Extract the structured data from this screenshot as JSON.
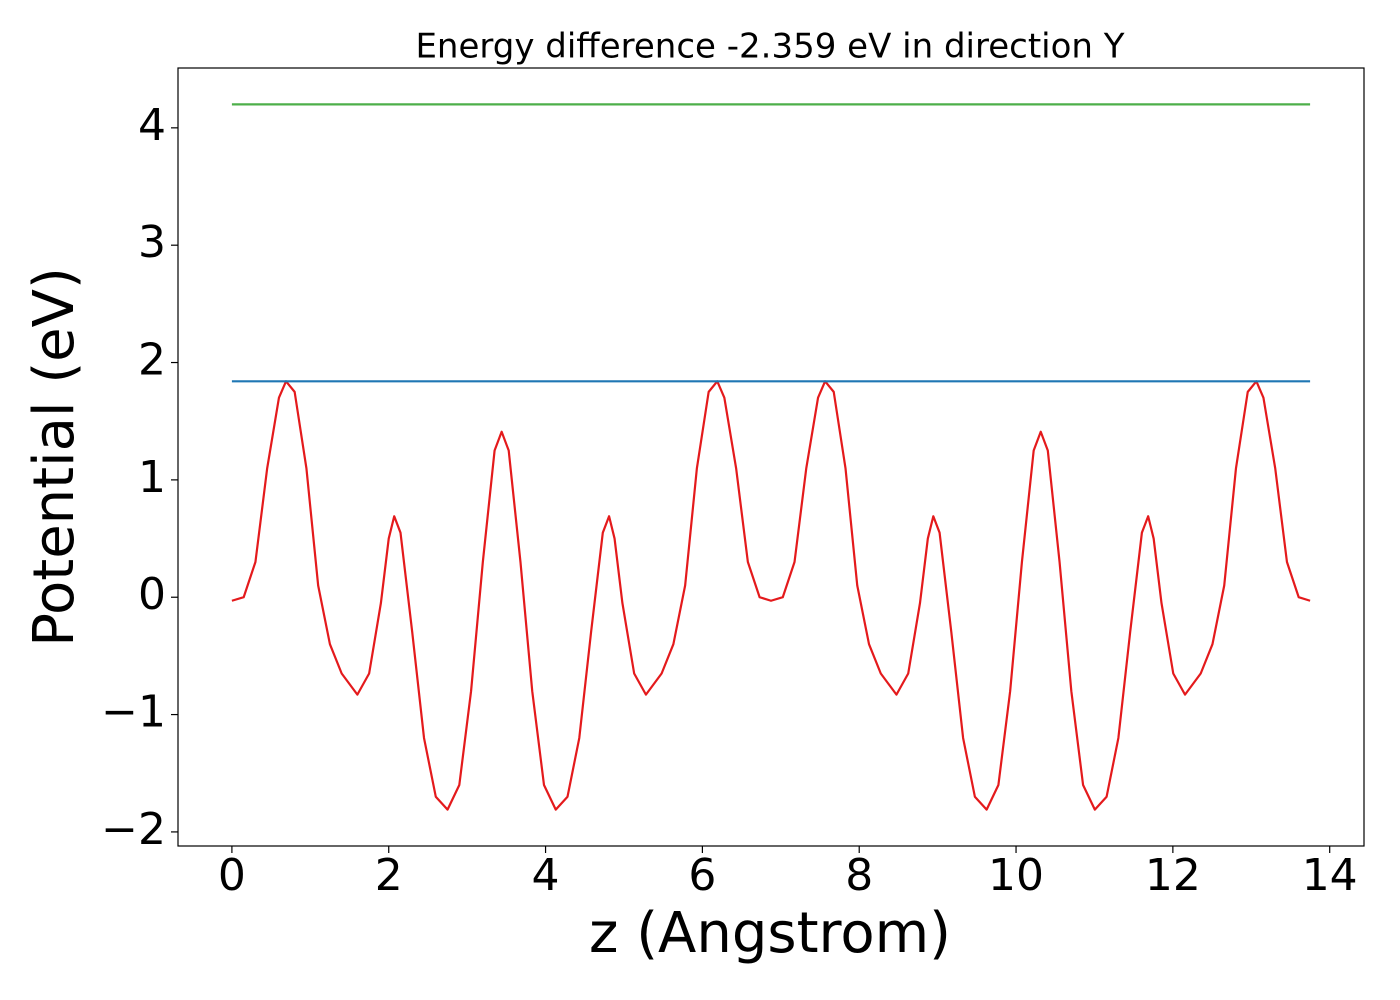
{
  "chart_data": {
    "type": "line",
    "title": "Energy difference -2.359 eV in direction Y",
    "x_label": "z (Angstrom)",
    "y_label": "Potential (eV)",
    "xlim": [
      -0.6875,
      14.4375
    ],
    "ylim": [
      -2.12,
      4.51
    ],
    "xticks": [
      0,
      2,
      4,
      6,
      8,
      10,
      12,
      14
    ],
    "yticks": [
      {
        "value": -2,
        "label": "−2"
      },
      {
        "value": -1,
        "label": "−1"
      },
      0,
      1,
      2,
      3,
      4
    ],
    "series": [
      {
        "color": "#e41a1c",
        "x": [
          0,
          0.15,
          0.3,
          0.45,
          0.6,
          0.69,
          0.8,
          0.95,
          1.1,
          1.25,
          1.4,
          1.6,
          1.75,
          1.9,
          2.0,
          2.07,
          2.15,
          2.3,
          2.45,
          2.6,
          2.75,
          2.9,
          3.05,
          3.2,
          3.35,
          3.44,
          3.53,
          3.68,
          3.83,
          3.98,
          4.13,
          4.28,
          4.43,
          4.58,
          4.73,
          4.81,
          4.88,
          4.98,
          5.13,
          5.28,
          5.48,
          5.63,
          5.78,
          5.93,
          6.08,
          6.19,
          6.28,
          6.43,
          6.58,
          6.73,
          6.875,
          7.025,
          7.175,
          7.325,
          7.475,
          7.565,
          7.675,
          7.825,
          7.975,
          8.125,
          8.275,
          8.475,
          8.625,
          8.775,
          8.875,
          8.945,
          9.025,
          9.175,
          9.325,
          9.475,
          9.625,
          9.775,
          9.925,
          10.075,
          10.225,
          10.315,
          10.405,
          10.555,
          10.705,
          10.855,
          11.005,
          11.155,
          11.305,
          11.455,
          11.605,
          11.685,
          11.755,
          11.855,
          12.005,
          12.155,
          12.355,
          12.505,
          12.655,
          12.805,
          12.955,
          13.065,
          13.155,
          13.305,
          13.455,
          13.605,
          13.75
        ],
        "values": [
          -0.03,
          0.0,
          0.3,
          1.1,
          1.7,
          1.84,
          1.75,
          1.1,
          0.1,
          -0.4,
          -0.65,
          -0.83,
          -0.65,
          -0.05,
          0.5,
          0.69,
          0.55,
          -0.3,
          -1.2,
          -1.7,
          -1.81,
          -1.6,
          -0.8,
          0.3,
          1.25,
          1.41,
          1.25,
          0.3,
          -0.8,
          -1.6,
          -1.81,
          -1.7,
          -1.2,
          -0.3,
          0.55,
          0.69,
          0.5,
          -0.05,
          -0.65,
          -0.83,
          -0.65,
          -0.4,
          0.1,
          1.1,
          1.75,
          1.84,
          1.7,
          1.1,
          0.3,
          0.0,
          -0.03,
          0.0,
          0.3,
          1.1,
          1.7,
          1.84,
          1.75,
          1.1,
          0.1,
          -0.4,
          -0.65,
          -0.83,
          -0.65,
          -0.05,
          0.5,
          0.69,
          0.55,
          -0.3,
          -1.2,
          -1.7,
          -1.81,
          -1.6,
          -0.8,
          0.3,
          1.25,
          1.41,
          1.25,
          0.3,
          -0.8,
          -1.6,
          -1.81,
          -1.7,
          -1.2,
          -0.3,
          0.55,
          0.69,
          0.5,
          -0.05,
          -0.65,
          -0.83,
          -0.65,
          -0.4,
          0.1,
          1.1,
          1.75,
          1.84,
          1.7,
          1.1,
          0.3,
          0.0,
          -0.03
        ]
      },
      {
        "color": "#1f77b4",
        "x": [
          0,
          13.75
        ],
        "values": [
          1.84,
          1.84
        ]
      },
      {
        "color": "#4daf4a",
        "x": [
          0,
          13.75
        ],
        "values": [
          4.2,
          4.2
        ]
      }
    ]
  }
}
